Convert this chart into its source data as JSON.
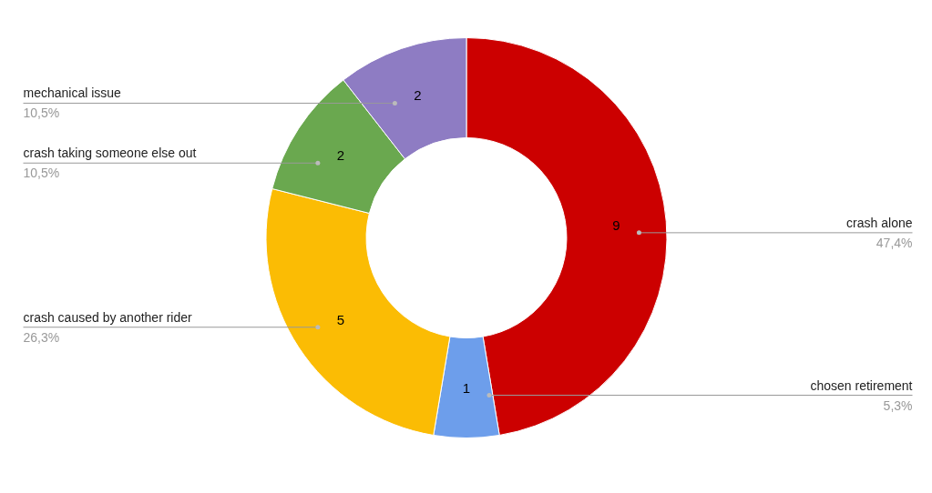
{
  "chart_data": {
    "type": "donut",
    "categories": [
      "crash alone",
      "chosen retirement",
      "crash caused by another rider",
      "crash taking someone else out",
      "mechanical issue"
    ],
    "values": [
      9,
      1,
      5,
      2,
      2
    ],
    "colors": [
      "#cc0000",
      "#6d9eeb",
      "#fbbc04",
      "#6aa84f",
      "#8e7cc3"
    ],
    "value_labels": [
      "9",
      "1",
      "5",
      "2",
      "2"
    ],
    "annotations": [
      "47,4%",
      "5,3%",
      "26,3%",
      "10,5%",
      "10,5%"
    ]
  }
}
